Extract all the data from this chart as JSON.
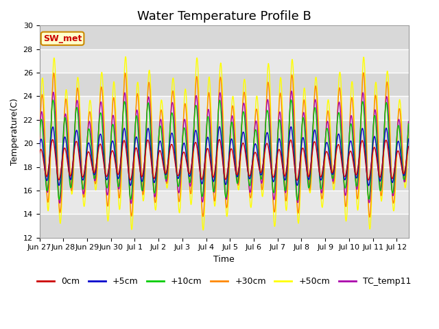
{
  "title": "Water Temperature Profile B",
  "xlabel": "Time",
  "ylabel": "Temperature(C)",
  "ylim": [
    12,
    30
  ],
  "end_day": 15.5,
  "annotation_text": "SW_met",
  "series_colors": {
    "0cm": "#cc0000",
    "+5cm": "#0000cc",
    "+10cm": "#00cc00",
    "+30cm": "#ff8800",
    "+50cm": "#ffff00",
    "TC_temp11": "#aa00aa"
  },
  "background_color": "#dcdcdc",
  "grid_color": "#ffffff",
  "title_fontsize": 13,
  "axis_fontsize": 9,
  "tick_fontsize": 8,
  "tick_positions": [
    0,
    1,
    2,
    3,
    4,
    5,
    6,
    7,
    8,
    9,
    10,
    11,
    12,
    13,
    14,
    15
  ],
  "tick_labels": [
    "Jun 27",
    "Jun 28",
    "Jun 29",
    "Jun 30",
    "Jul 1",
    "Jul 2",
    "Jul 3",
    "Jul 4",
    "Jul 5",
    "Jul 6",
    "Jul 7",
    "Jul 8",
    "Jul 9",
    "Jul 10",
    "Jul 11",
    "Jul 12"
  ],
  "yticks": [
    12,
    14,
    16,
    18,
    20,
    22,
    24,
    26,
    28,
    30
  ],
  "n_points": 2000,
  "figsize": [
    6.4,
    4.8
  ],
  "dpi": 100
}
